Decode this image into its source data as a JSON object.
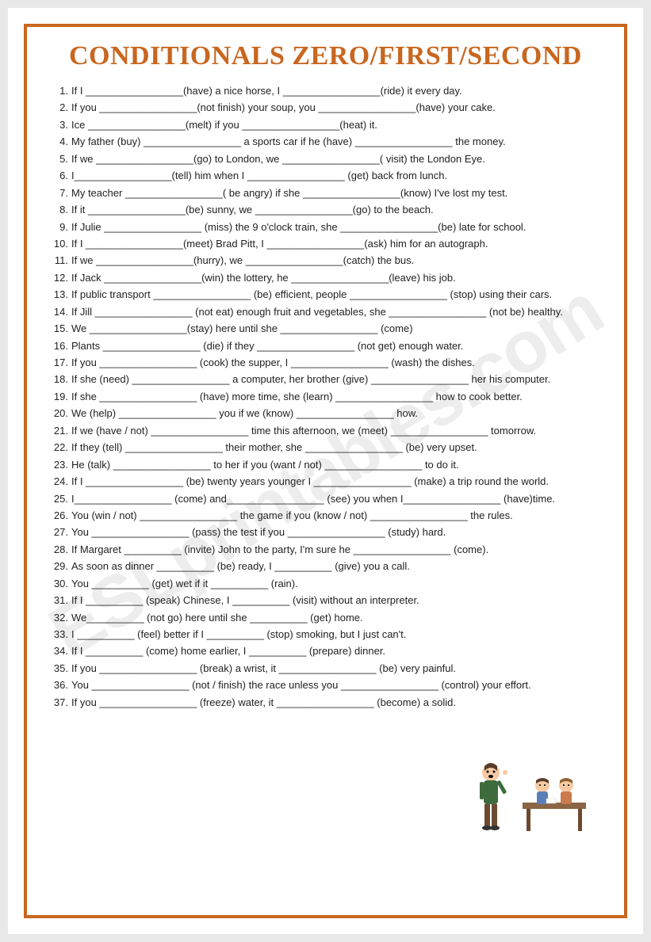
{
  "title": "CONDITIONALS ZERO/FIRST/SECOND",
  "watermark": "ESLprintables.com",
  "colors": {
    "border": "#c9661f",
    "title": "#c9661f",
    "text": "#222222",
    "background": "#ffffff",
    "watermark": "rgba(0,0,0,0.07)"
  },
  "typography": {
    "title_fontsize": 34,
    "title_family": "Georgia, serif",
    "body_fontsize": 13,
    "body_family": "Comic Sans MS, Century Gothic, sans-serif",
    "line_height": 1.65
  },
  "items": [
    "If I _________________(have) a nice horse, I _________________(ride) it every day.",
    "If you _________________(not finish) your soup, you _________________(have) your cake.",
    "Ice _________________(melt) if you _________________(heat) it.",
    "My father (buy) _________________ a sports car if he (have) _________________ the money.",
    "If we _________________(go) to London, we _________________( visit) the London Eye.",
    "I_________________(tell) him when I _________________ (get) back from lunch.",
    "My teacher _________________( be angry) if she _________________(know) I've lost my test.",
    "If it _________________(be) sunny, we _________________(go) to the beach.",
    "If Julie _________________ (miss) the 9 o'clock train, she _________________(be) late for school.",
    "If I _________________(meet) Brad Pitt, I _________________(ask) him for an autograph.",
    "If we _________________(hurry), we _________________(catch) the bus.",
    "If Jack _________________(win) the lottery, he _________________(leave) his job.",
    "If public transport _________________ (be) efficient, people _________________ (stop) using their cars.",
    "If Jill _________________ (not eat) enough fruit and vegetables, she _________________ (not be) healthy.",
    "We _________________(stay) here until she _________________ (come)",
    "Plants _________________ (die) if they _________________ (not get) enough water.",
    "If you _________________ (cook) the supper, I _________________ (wash) the dishes.",
    "If she (need) _________________ a computer, her brother (give) _________________ her his computer.",
    "If she _________________ (have)  more time, she (learn) _________________ how to cook better.",
    "We (help) _________________ you if we (know) _________________ how.",
    "If we (have / not) _________________ time this afternoon, we (meet) _________________ tomorrow.",
    "If they (tell) _________________ their mother, she _________________ (be) very upset.",
    "He (talk) _________________ to her if you (want / not) _________________ to do it.",
    "If I _________________ (be) twenty years younger I _________________ (make) a trip round the world.",
    "I_________________ (come) and_________________ (see) you when I_________________ (have)time.",
    "You (win / not) _________________ the game if you (know / not) _________________ the rules.",
    "You _________________ (pass) the test if you _________________ (study) hard.",
    "If Margaret __________ (invite) John to the party, I'm sure he _________________ (come).",
    "As soon as dinner __________ (be) ready, I __________ (give) you a call.",
    "You __________ (get) wet if it __________ (rain).",
    "If I __________ (speak) Chinese, I __________ (visit) without an interpreter.",
    "We__________ (not go) here until she __________ (get) home.",
    "I __________ (feel)  better if I __________ (stop) smoking, but I just can't.",
    "If I __________ (come) home earlier, I __________ (prepare) dinner.",
    "If you _________________ (break) a wrist, it _________________ (be) very painful.",
    "You _________________ (not / finish) the race unless you _________________ (control) your effort.",
    "If you _________________ (freeze) water, it _________________ (become) a solid."
  ],
  "short_items": [
    28,
    29,
    30,
    31,
    32,
    33
  ],
  "clipart": {
    "description": "teacher standing with finger raised, two students at desk",
    "colors": {
      "skin": "#f5c9a3",
      "teacher_shirt": "#3d6b3d",
      "teacher_pants": "#6b4a2f",
      "student1_shirt": "#5a7fb8",
      "student2_shirt": "#c97a4f",
      "desk": "#8b6544",
      "hair": "#5a3d28"
    }
  }
}
